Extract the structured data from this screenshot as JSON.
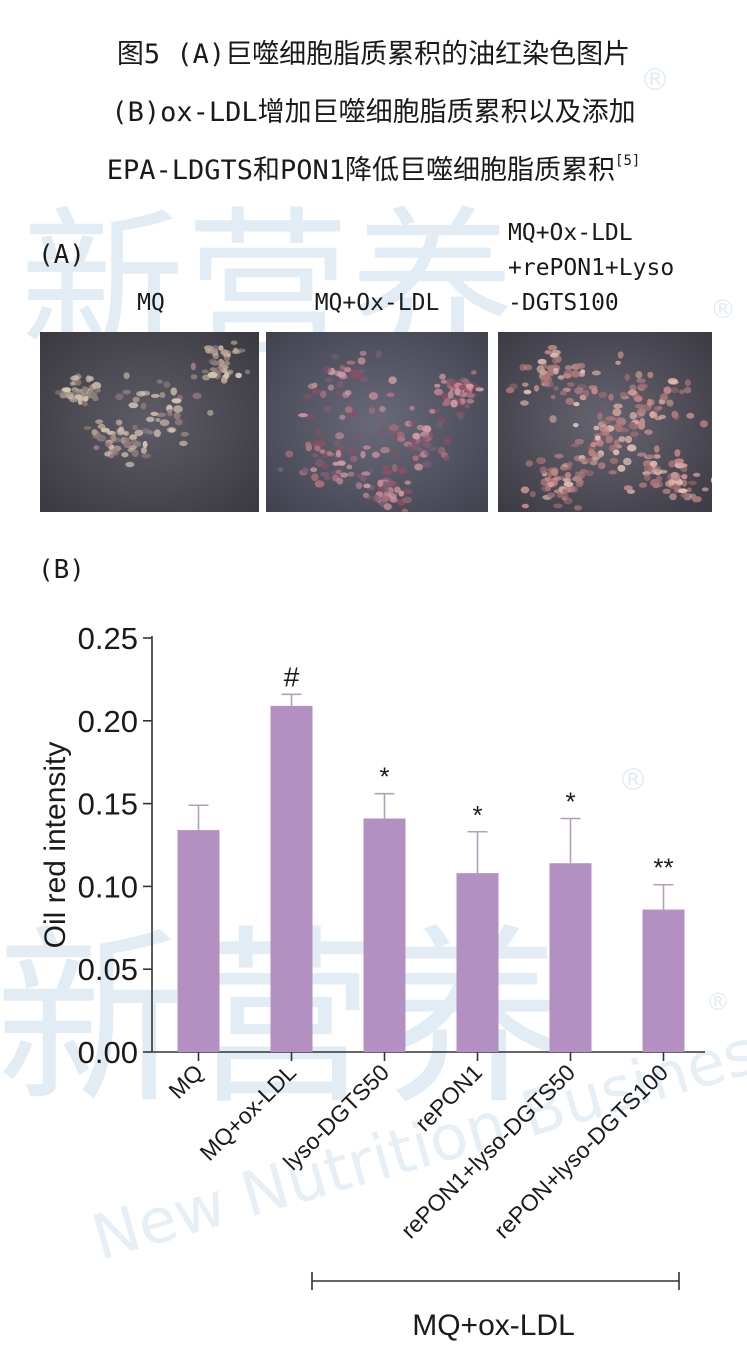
{
  "figure": {
    "title_line1": "图5 (A)巨噬细胞脂质累积的油红染色图片",
    "title_line2": "(B)ox-LDL增加巨噬细胞脂质累积以及添加",
    "title_line3": "EPA-LDGTS和PON1降低巨噬细胞脂质累积",
    "title_ref": "[5]",
    "panel_a_label": "(A)",
    "panel_b_label": "(B)"
  },
  "panel_a": {
    "images": [
      {
        "label_lines": [
          "MQ"
        ],
        "description": "oil red stained macrophages"
      },
      {
        "label_lines": [
          "MQ+Ox-LDL"
        ],
        "description": "oil red stained macrophages"
      },
      {
        "label_lines": [
          "MQ+Ox-LDL",
          "+rePON1+Lyso",
          "-DGTS100"
        ],
        "description": "oil red stained macrophages"
      }
    ]
  },
  "watermark": {
    "text_cn": "新营养",
    "text_en": "New Nutrition Business",
    "registered": "®",
    "color": "#dde8f2"
  },
  "chart_data": {
    "type": "bar",
    "ylabel": "Oil red intensity",
    "ylim": [
      0,
      0.25
    ],
    "yticks": [
      "0.00",
      "0.05",
      "0.10",
      "0.15",
      "0.20",
      "0.25"
    ],
    "categories": [
      "MQ",
      "MQ+ox-LDL",
      "lyso-DGTS50",
      "rePON1",
      "rePON1+lyso-DGTS50",
      "rePON+lyso-DGTS100"
    ],
    "values": [
      0.134,
      0.209,
      0.141,
      0.108,
      0.114,
      0.086
    ],
    "errors": [
      0.015,
      0.007,
      0.015,
      0.025,
      0.027,
      0.015
    ],
    "significance": [
      "",
      "#",
      "*",
      "*",
      "*",
      "**"
    ],
    "group_label": "MQ+ox-LDL",
    "bar_color": "#b48fc2",
    "grid": false
  }
}
